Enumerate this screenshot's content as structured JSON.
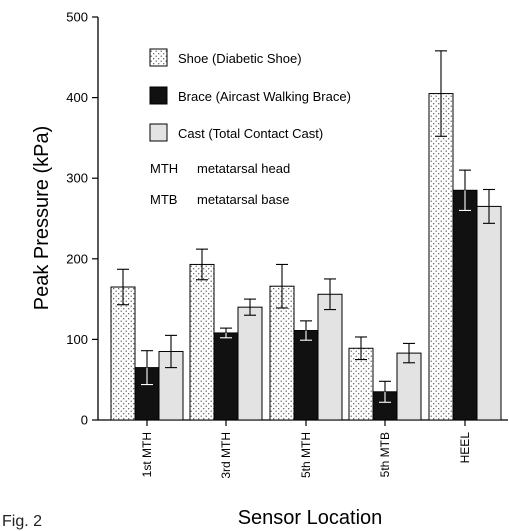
{
  "figure_label": "Fig. 2",
  "chart_data": {
    "type": "bar",
    "title": "",
    "xlabel": "Sensor Location",
    "ylabel": "Peak Pressure (kPa)",
    "ylim": [
      0,
      500
    ],
    "yticks": [
      0,
      100,
      200,
      300,
      400,
      500
    ],
    "categories": [
      "1st MTH",
      "3rd MTH",
      "5th MTH",
      "5th MTB",
      "HEEL"
    ],
    "grid": false,
    "legend_position": "top-left",
    "series": [
      {
        "name": "Shoe (Diabetic Shoe)",
        "pattern": "dotted",
        "color": "#ffffff",
        "values": [
          165,
          193,
          166,
          89,
          405
        ],
        "errors": [
          22,
          19,
          27,
          14,
          53
        ]
      },
      {
        "name": "Brace (Aircast Walking Brace)",
        "pattern": "solid",
        "color": "#111111",
        "values": [
          65,
          108,
          111,
          35,
          285
        ],
        "errors": [
          21,
          6,
          12,
          13,
          25
        ]
      },
      {
        "name": "Cast (Total Contact Cast)",
        "pattern": "solid",
        "color": "#e3e3e3",
        "values": [
          85,
          140,
          156,
          83,
          265
        ],
        "errors": [
          20,
          10,
          19,
          12,
          21
        ]
      }
    ],
    "annotations": [
      {
        "abbr": "MTH",
        "meaning": "metatarsal head"
      },
      {
        "abbr": "MTB",
        "meaning": "metatarsal base"
      }
    ]
  }
}
